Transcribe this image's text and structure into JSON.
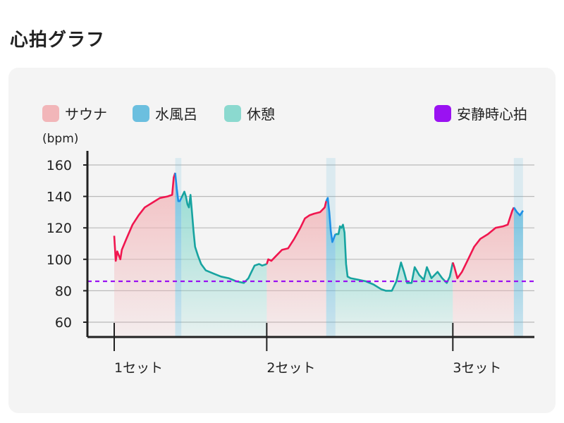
{
  "page": {
    "title": "心拍グラフ"
  },
  "legend": [
    {
      "label": "サウナ",
      "color": "#f2b6b9"
    },
    {
      "label": "水風呂",
      "color": "#6bbfdf"
    },
    {
      "label": "休憩",
      "color": "#8bd9cf"
    },
    {
      "label": "安静時心拍",
      "color": "#9a12f2"
    }
  ],
  "chart_data": {
    "type": "line",
    "ylabel": "(bpm)",
    "ylim": [
      50,
      168
    ],
    "yticks": [
      60,
      80,
      100,
      120,
      140,
      160
    ],
    "xlim": [
      0,
      275
    ],
    "grid": true,
    "set_markers": [
      {
        "label": "1セット",
        "x": 0
      },
      {
        "label": "2セット",
        "x": 100
      },
      {
        "label": "3セット",
        "x": 222
      }
    ],
    "resting_hr": 86,
    "phases": [
      {
        "type": "サウナ",
        "start": 0,
        "end": 40
      },
      {
        "type": "水風呂",
        "start": 40,
        "end": 44
      },
      {
        "type": "休憩",
        "start": 44,
        "end": 100
      },
      {
        "type": "サウナ",
        "start": 100,
        "end": 139
      },
      {
        "type": "水風呂",
        "start": 139,
        "end": 145
      },
      {
        "type": "休憩",
        "start": 145,
        "end": 222
      },
      {
        "type": "サウナ",
        "start": 222,
        "end": 262
      },
      {
        "type": "水風呂",
        "start": 262,
        "end": 268
      }
    ],
    "series": [
      {
        "colors": {
          "サウナ": "#f0164f",
          "水風呂": "#1e8fe6",
          "休憩": "#17a3a0"
        },
        "points": [
          [
            0,
            115
          ],
          [
            1,
            99
          ],
          [
            2,
            105
          ],
          [
            4,
            100
          ],
          [
            5,
            106
          ],
          [
            8,
            113
          ],
          [
            12,
            122
          ],
          [
            16,
            128
          ],
          [
            20,
            133
          ],
          [
            25,
            136
          ],
          [
            30,
            139
          ],
          [
            35,
            140
          ],
          [
            38,
            141
          ],
          [
            39,
            152
          ],
          [
            40,
            155
          ],
          [
            41,
            145
          ],
          [
            42,
            137
          ],
          [
            43,
            137
          ],
          [
            44,
            139
          ],
          [
            46,
            143
          ],
          [
            47,
            140
          ],
          [
            48,
            135
          ],
          [
            49,
            133
          ],
          [
            50,
            141
          ],
          [
            51,
            130
          ],
          [
            52,
            118
          ],
          [
            53,
            108
          ],
          [
            55,
            102
          ],
          [
            57,
            97
          ],
          [
            60,
            93
          ],
          [
            65,
            91
          ],
          [
            70,
            89
          ],
          [
            75,
            88
          ],
          [
            80,
            86
          ],
          [
            85,
            85
          ],
          [
            88,
            88
          ],
          [
            90,
            92
          ],
          [
            92,
            96
          ],
          [
            95,
            97
          ],
          [
            97,
            96
          ],
          [
            100,
            97
          ],
          [
            101,
            100
          ],
          [
            103,
            99
          ],
          [
            106,
            102
          ],
          [
            110,
            106
          ],
          [
            114,
            107
          ],
          [
            118,
            113
          ],
          [
            122,
            120
          ],
          [
            125,
            126
          ],
          [
            128,
            128
          ],
          [
            131,
            129
          ],
          [
            135,
            130
          ],
          [
            138,
            133
          ],
          [
            139,
            137
          ],
          [
            140,
            139
          ],
          [
            141,
            130
          ],
          [
            142,
            118
          ],
          [
            143,
            111
          ],
          [
            145,
            116
          ],
          [
            147,
            116
          ],
          [
            148,
            121
          ],
          [
            149,
            120
          ],
          [
            150,
            122
          ],
          [
            151,
            117
          ],
          [
            152,
            97
          ],
          [
            153,
            89
          ],
          [
            155,
            88
          ],
          [
            160,
            87
          ],
          [
            165,
            86
          ],
          [
            170,
            84
          ],
          [
            175,
            81
          ],
          [
            178,
            80
          ],
          [
            182,
            80
          ],
          [
            185,
            86
          ],
          [
            188,
            98
          ],
          [
            190,
            92
          ],
          [
            192,
            85
          ],
          [
            195,
            85
          ],
          [
            197,
            95
          ],
          [
            200,
            90
          ],
          [
            203,
            87
          ],
          [
            205,
            95
          ],
          [
            208,
            88
          ],
          [
            212,
            92
          ],
          [
            215,
            88
          ],
          [
            218,
            85
          ],
          [
            220,
            89
          ],
          [
            222,
            98
          ],
          [
            223,
            95
          ],
          [
            225,
            88
          ],
          [
            228,
            92
          ],
          [
            232,
            100
          ],
          [
            236,
            108
          ],
          [
            240,
            113
          ],
          [
            245,
            116
          ],
          [
            250,
            120
          ],
          [
            255,
            121
          ],
          [
            258,
            122
          ],
          [
            260,
            128
          ],
          [
            261,
            131
          ],
          [
            262,
            133
          ],
          [
            264,
            130
          ],
          [
            266,
            128
          ],
          [
            268,
            131
          ]
        ]
      }
    ]
  }
}
